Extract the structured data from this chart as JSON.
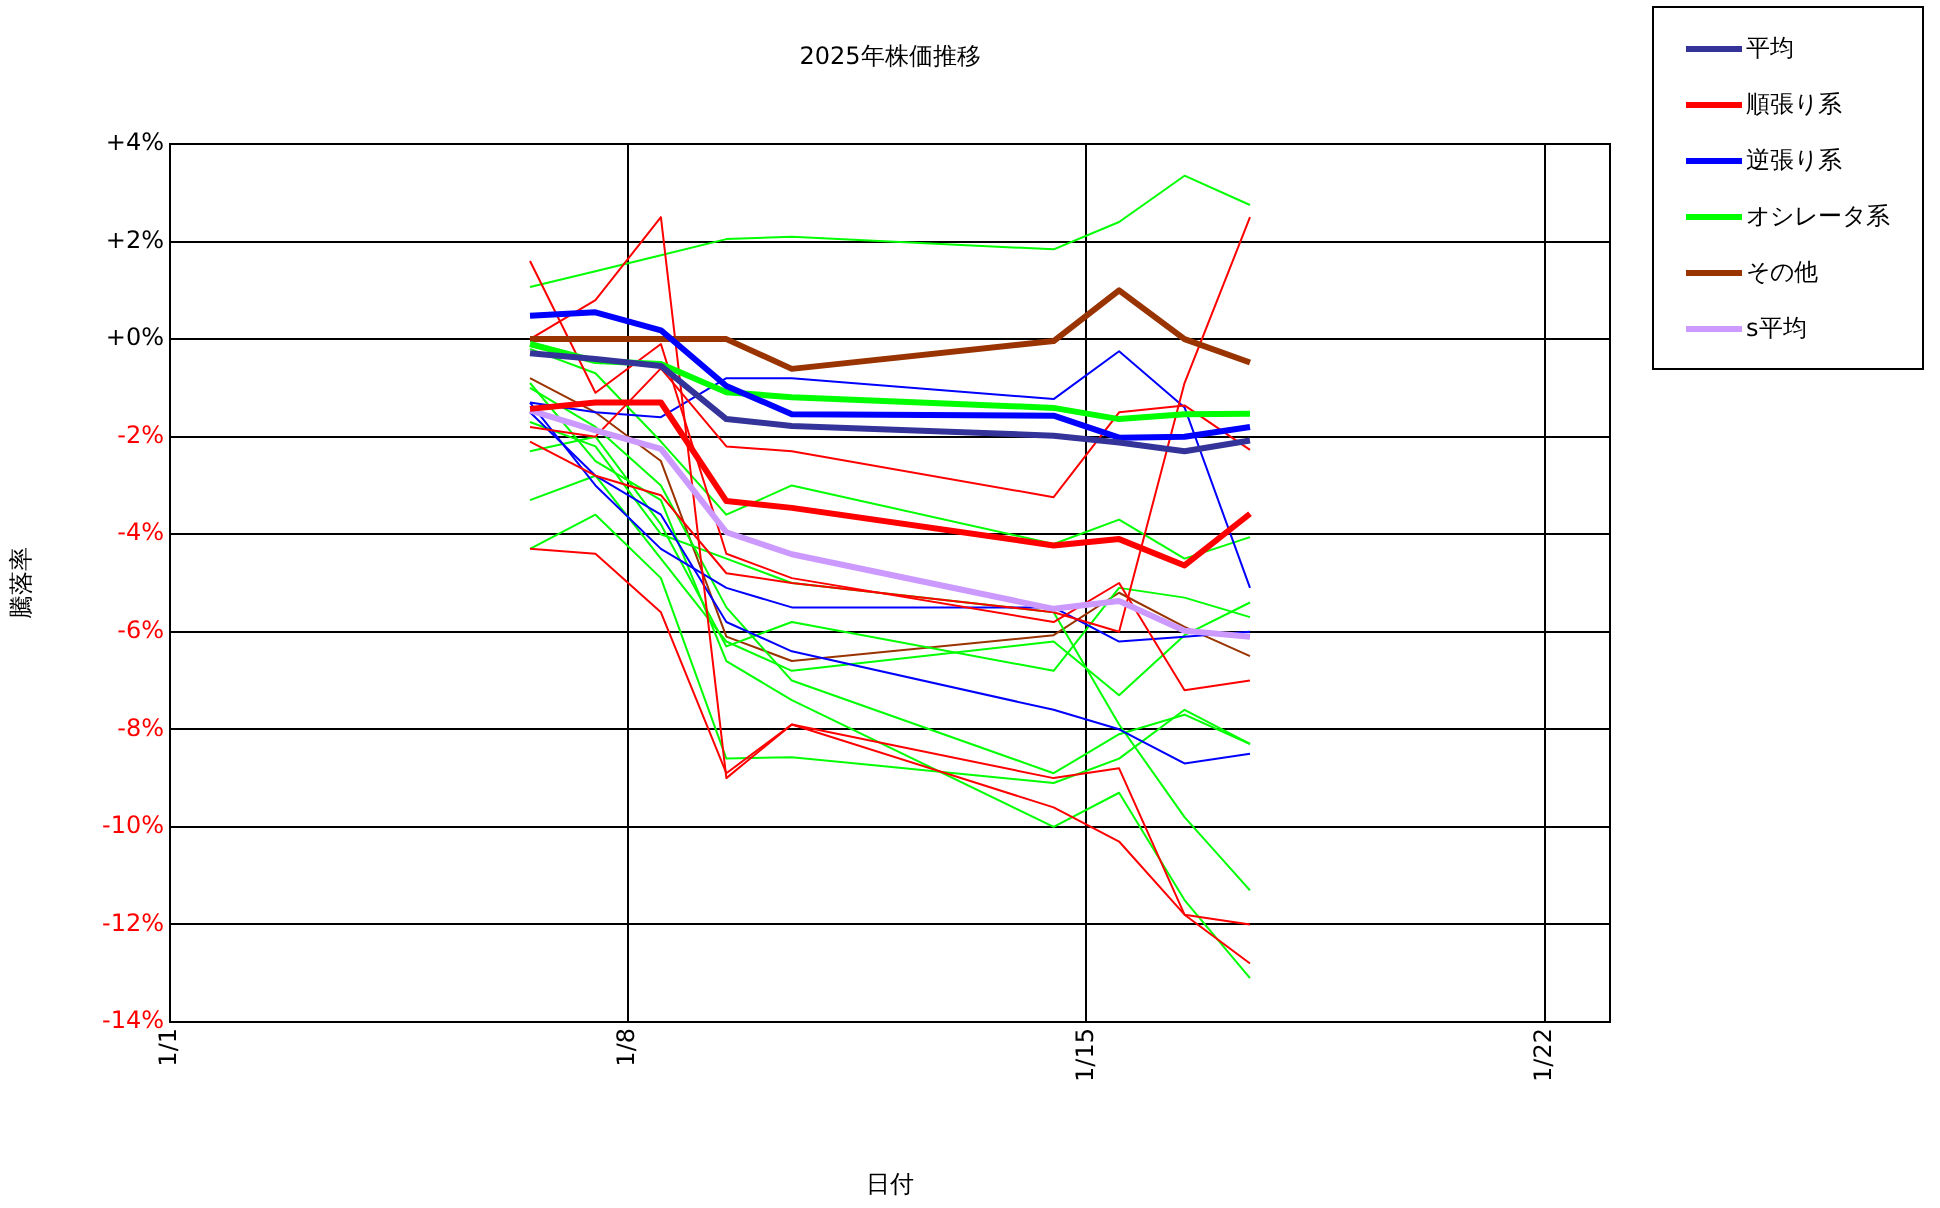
{
  "chart_data": {
    "type": "line",
    "title": "2025年株価推移",
    "xlabel": "日付",
    "ylabel": "騰落率",
    "x": [
      "2025-01-06T12:00",
      "2025-01-07T12:00",
      "2025-01-08T12:00",
      "2025-01-09T12:00",
      "2025-01-10T12:00",
      "2025-01-14T12:00",
      "2025-01-15T12:00",
      "2025-01-16T12:00",
      "2025-01-17T12:00"
    ],
    "xlim": [
      "2025-01-01",
      "2025-01-23"
    ],
    "xticks": [
      {
        "value": "2025-01-01",
        "label": "1/1"
      },
      {
        "value": "2025-01-08",
        "label": "1/8"
      },
      {
        "value": "2025-01-15",
        "label": "1/15"
      },
      {
        "value": "2025-01-22",
        "label": "1/22"
      }
    ],
    "ylim": [
      -14,
      4
    ],
    "yticks": [
      {
        "value": -14,
        "label": "-14%"
      },
      {
        "value": -12,
        "label": "-12%"
      },
      {
        "value": -10,
        "label": "-10%"
      },
      {
        "value": -8,
        "label": "-8%"
      },
      {
        "value": -6,
        "label": "-6%"
      },
      {
        "value": -4,
        "label": "-4%"
      },
      {
        "value": -2,
        "label": "-2%"
      },
      {
        "value": 0,
        "label": "+0%"
      },
      {
        "value": 2,
        "label": "+2%"
      },
      {
        "value": 4,
        "label": "+4%"
      }
    ],
    "grid": true,
    "legend": "top right",
    "marker": "none",
    "line_style": "solid",
    "series": [
      {
        "name": "平均",
        "color": "#333399",
        "values": [
          -0.29,
          -0.41,
          -0.55,
          -1.64,
          -1.78,
          -1.98,
          -2.12,
          -2.3,
          -2.08
        ]
      },
      {
        "name": "順張り系",
        "color": "#ff0000",
        "values": [
          -1.43,
          -1.3,
          -1.3,
          -3.32,
          -3.46,
          -4.23,
          -4.1,
          -4.64,
          -3.58
        ]
      },
      {
        "name": "逆張り系",
        "color": "#0000ff",
        "values": [
          0.48,
          0.55,
          0.18,
          -0.96,
          -1.54,
          -1.57,
          -2.02,
          -2.0,
          -1.8
        ]
      },
      {
        "name": "オシレータ系",
        "color": "#00ff00",
        "values": [
          -0.1,
          -0.45,
          -0.51,
          -1.09,
          -1.19,
          -1.41,
          -1.64,
          -1.54,
          -1.53
        ]
      },
      {
        "name": "その他",
        "color": "#993300",
        "values": [
          0,
          0,
          0,
          0,
          -0.61,
          -0.04,
          1.0,
          0,
          -0.48
        ]
      },
      {
        "name": "s平均",
        "color": "#cc99ff",
        "values": [
          -1.46,
          -1.87,
          -2.25,
          -3.96,
          -4.41,
          -5.53,
          -5.37,
          -5.98,
          -6.1
        ]
      },
      {
        "color": "#ff0000",
        "values": [
          0,
          0.8,
          2.5,
          -9.0,
          -7.9,
          -9.0,
          -8.8,
          -11.8,
          -12.0
        ]
      },
      {
        "color": "#ff0000",
        "values": [
          1.6,
          -1.1,
          -0.1,
          -4.4,
          -4.9,
          -5.8,
          -5.0,
          -7.2,
          -7.0
        ]
      },
      {
        "color": "#ff0000",
        "values": [
          -4.3,
          -4.4,
          -5.6,
          -8.9,
          -7.9,
          -9.6,
          -10.3,
          -11.8,
          -12.8
        ]
      },
      {
        "color": "#ff0000",
        "values": [
          -1.8,
          -2.0,
          -0.6,
          -2.2,
          -2.3,
          -3.24,
          -1.5,
          -1.36,
          -2.27
        ]
      },
      {
        "color": "#ff0000",
        "values": [
          -2.1,
          -2.8,
          -3.2,
          -4.8,
          -5.0,
          -5.6,
          -6.0,
          -0.9,
          2.5
        ]
      },
      {
        "color": "#0000ff",
        "values": [
          -1.3,
          -1.5,
          -1.6,
          -0.8,
          -0.8,
          -1.23,
          -0.25,
          -1.4,
          -5.1
        ]
      },
      {
        "color": "#0000ff",
        "values": [
          -1.3,
          -3.0,
          -4.3,
          -5.1,
          -5.5,
          -5.5,
          -6.2,
          -6.1,
          -6.0
        ]
      },
      {
        "color": "#0000ff",
        "values": [
          -1.5,
          -2.8,
          -3.6,
          -5.8,
          -6.4,
          -7.6,
          -8.0,
          -8.7,
          -8.5
        ]
      },
      {
        "color": "#00ff00",
        "values": [
          1.07,
          1.39,
          1.72,
          2.05,
          2.1,
          1.84,
          2.4,
          3.35,
          2.75
        ]
      },
      {
        "color": "#00ff00",
        "values": [
          -0.2,
          -0.7,
          -2.1,
          -3.6,
          -3.0,
          -4.2,
          -3.7,
          -4.5,
          -4.06
        ]
      },
      {
        "color": "#00ff00",
        "values": [
          -2.3,
          -2.0,
          -3.8,
          -6.3,
          -5.8,
          -6.8,
          -5.1,
          -5.3,
          -5.7
        ]
      },
      {
        "color": "#00ff00",
        "values": [
          -4.3,
          -3.6,
          -4.9,
          -8.6,
          -8.57,
          -9.1,
          -8.6,
          -7.6,
          -8.3
        ]
      },
      {
        "color": "#00ff00",
        "values": [
          -3.3,
          -2.8,
          -4.5,
          -6.2,
          -6.8,
          -6.2,
          -7.3,
          -6.07,
          -5.4
        ]
      },
      {
        "color": "#00ff00",
        "values": [
          -1.0,
          -1.8,
          -3.0,
          -5.5,
          -7.0,
          -8.9,
          -8.1,
          -7.7,
          -8.3
        ]
      },
      {
        "color": "#00ff00",
        "values": [
          -0.9,
          -2.5,
          -3.3,
          -6.6,
          -7.4,
          -10.0,
          -9.3,
          -11.5,
          -13.1
        ]
      },
      {
        "color": "#00ff00",
        "values": [
          -1.7,
          -2.2,
          -4.0,
          -4.5,
          -5.0,
          -5.6,
          -7.9,
          -9.8,
          -11.3
        ]
      },
      {
        "color": "#993300",
        "values": [
          -0.8,
          -1.5,
          -2.5,
          -6.1,
          -6.6,
          -6.07,
          -5.2,
          -5.9,
          -6.5
        ]
      }
    ]
  }
}
